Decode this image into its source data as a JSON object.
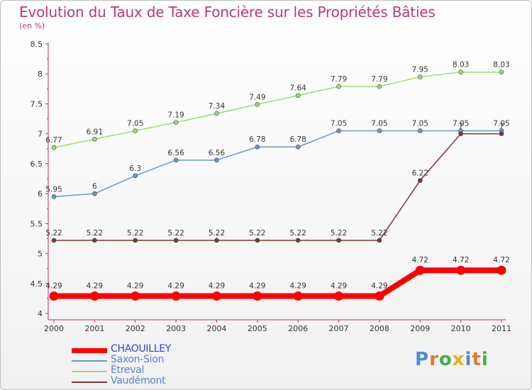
{
  "chart_data": {
    "type": "line",
    "title": "Evolution du Taux de Taxe Foncière sur les Propriétés Bâties",
    "ylabel": "(en %)",
    "ylim": [
      4,
      8.5
    ],
    "yticks": [
      "4",
      "4.5",
      "5",
      "5.5",
      "6",
      "6.5",
      "7",
      "7.5",
      "8",
      "8.5"
    ],
    "categories": [
      "2000",
      "2001",
      "2002",
      "2003",
      "2004",
      "2005",
      "2006",
      "2007",
      "2008",
      "2009",
      "2010",
      "2011"
    ],
    "series": [
      {
        "name": "CHAOUILLEY",
        "color": "#ff0000",
        "values": [
          4.29,
          4.29,
          4.29,
          4.29,
          4.29,
          4.29,
          4.29,
          4.29,
          4.29,
          4.72,
          4.72,
          4.72
        ],
        "labels": [
          "4.29",
          "4.29",
          "4.29",
          "4.29",
          "4.29",
          "4.29",
          "4.29",
          "4.29",
          "4.29",
          "4.72",
          "4.72",
          "4.72"
        ]
      },
      {
        "name": "Saxon-Sion",
        "color": "#6699cc",
        "values": [
          5.95,
          6,
          6.3,
          6.56,
          6.56,
          6.78,
          6.78,
          7.05,
          7.05,
          7.05,
          7.05,
          7.05
        ],
        "labels": [
          "5.95",
          "6",
          "6.3",
          "6.56",
          "6.56",
          "6.78",
          "6.78",
          "7.05",
          "7.05",
          "7.05",
          "7.05",
          "7.05"
        ]
      },
      {
        "name": "Étreval",
        "color": "#99dd77",
        "values": [
          6.77,
          6.91,
          7.05,
          7.19,
          7.34,
          7.49,
          7.64,
          7.79,
          7.79,
          7.95,
          8.03,
          8.03
        ],
        "labels": [
          "6.77",
          "6.91",
          "7.05",
          "7.19",
          "7.34",
          "7.49",
          "7.64",
          "7.79",
          "7.79",
          "7.95",
          "8.03",
          "8.03"
        ]
      },
      {
        "name": "Vaudémont",
        "color": "#7a3a3a",
        "values": [
          5.22,
          5.22,
          5.22,
          5.22,
          5.22,
          5.22,
          5.22,
          5.22,
          5.22,
          6.22,
          7,
          7
        ],
        "labels": [
          "5.22",
          "5.22",
          "5.22",
          "5.22",
          "5.22",
          "5.22",
          "5.22",
          "5.22",
          "5.22",
          "6.22",
          "7",
          "7"
        ]
      }
    ],
    "grid": false,
    "legend": "bottom-left"
  },
  "logo": {
    "text": "Proxiti",
    "letters": [
      "P",
      "r",
      "o",
      "x",
      "i",
      "t",
      "i"
    ]
  }
}
